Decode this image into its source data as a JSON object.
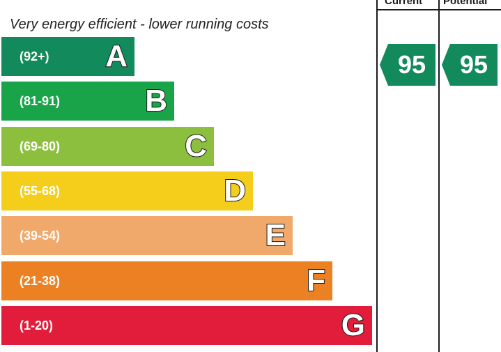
{
  "header": {
    "current_label": "Current",
    "potential_label": "Potential"
  },
  "chart_data": {
    "type": "bar",
    "subtitle": "Very energy efficient - lower running costs",
    "bands": [
      {
        "letter": "A",
        "range": "(92+)",
        "color": "#138a5c",
        "length": 1
      },
      {
        "letter": "B",
        "range": "(81-91)",
        "color": "#1aa44a",
        "length": 2
      },
      {
        "letter": "C",
        "range": "(69-80)",
        "color": "#8dbf3f",
        "length": 3
      },
      {
        "letter": "D",
        "range": "(55-68)",
        "color": "#f5cd1b",
        "length": 4
      },
      {
        "letter": "E",
        "range": "(39-54)",
        "color": "#f1a86b",
        "length": 5
      },
      {
        "letter": "F",
        "range": "(21-38)",
        "color": "#ec8124",
        "length": 6
      },
      {
        "letter": "G",
        "range": "(1-20)",
        "color": "#e21d3b",
        "length": 7
      }
    ],
    "current": {
      "value": "95",
      "band": "A",
      "color": "#138a5c"
    },
    "potential": {
      "value": "95",
      "band": "A",
      "color": "#138a5c"
    }
  }
}
